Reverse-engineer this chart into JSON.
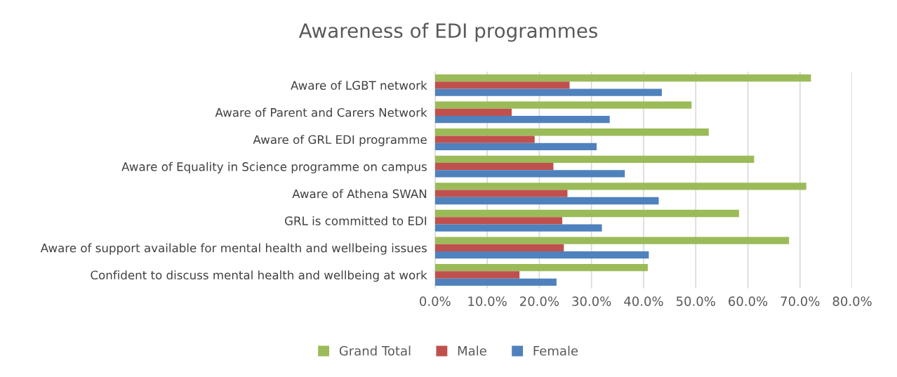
{
  "chart_data": {
    "type": "bar",
    "orientation": "horizontal",
    "title": "Awareness of EDI programmes",
    "categories": [
      "Aware of LGBT network",
      "Aware of Parent and Carers Network",
      "Aware of GRL EDI programme",
      "Aware of Equality in Science programme on campus",
      "Aware of Athena SWAN",
      "GRL is committed to EDI",
      "Aware of support available for mental health and wellbeing issues",
      "Confident to discuss mental health and wellbeing at work"
    ],
    "series": [
      {
        "name": "Grand Total",
        "color": "#9bbb59",
        "values": [
          72.1,
          49.2,
          52.5,
          61.2,
          71.2,
          58.3,
          67.9,
          40.8
        ]
      },
      {
        "name": "Male",
        "color": "#c0504d",
        "values": [
          25.8,
          14.7,
          19.1,
          22.7,
          25.4,
          24.4,
          24.7,
          16.2
        ]
      },
      {
        "name": "Female",
        "color": "#4f81bd",
        "values": [
          43.5,
          33.5,
          31.0,
          36.4,
          42.9,
          32.0,
          41.0,
          23.3
        ]
      }
    ],
    "xlim": [
      0,
      80
    ],
    "xticks": [
      {
        "value": 0,
        "label": "0.0%"
      },
      {
        "value": 10,
        "label": "10.0%"
      },
      {
        "value": 20,
        "label": "20.0%"
      },
      {
        "value": 30,
        "label": "30.0%"
      },
      {
        "value": 40,
        "label": "40.0%"
      },
      {
        "value": 50,
        "label": "50.0%"
      },
      {
        "value": 60,
        "label": "60.0%"
      },
      {
        "value": 70,
        "label": "70.0%"
      },
      {
        "value": 80,
        "label": "80.0%"
      }
    ],
    "grid": "x",
    "legend": "bottom"
  }
}
